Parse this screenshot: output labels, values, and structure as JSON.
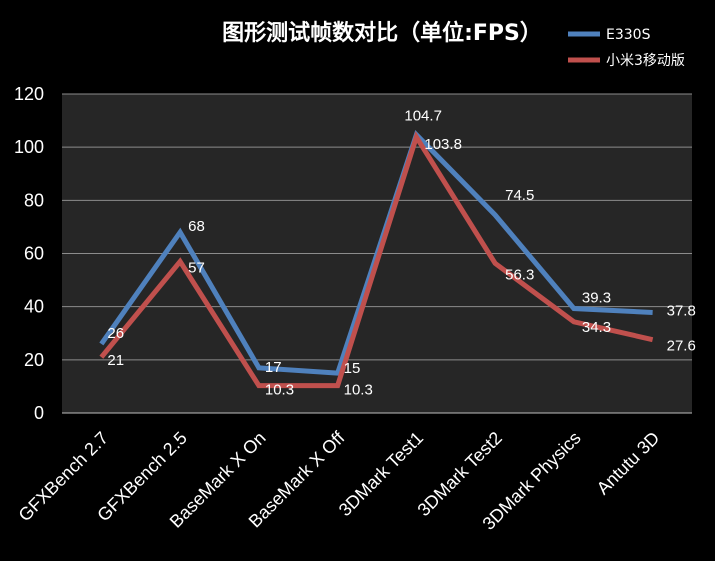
{
  "chart_data": {
    "type": "line",
    "title": "图形测试帧数对比（单位:FPS）",
    "categories": [
      "GFXBench 2.7",
      "GFXBench 2.5",
      "BaseMark X On",
      "BaseMark X Off",
      "3DMark Test1",
      "3DMark Test2",
      "3DMark Physics",
      "Antutu 3D"
    ],
    "series": [
      {
        "name": "E330S",
        "color": "#4F81BD",
        "values": [
          26,
          68,
          17,
          15,
          104.7,
          74.5,
          39.3,
          37.8
        ]
      },
      {
        "name": "小米3移动版",
        "color": "#C0504D",
        "values": [
          21,
          57,
          10.3,
          10.3,
          103.8,
          56.3,
          34.3,
          27.6
        ]
      }
    ],
    "ylim": [
      0,
      120
    ],
    "yticks": [
      0,
      20,
      40,
      60,
      80,
      100,
      120
    ],
    "grid": true,
    "legend": "top-right",
    "colors": {
      "background": "#000000",
      "plot_area": "#262626",
      "gridline": "#8c8c8c",
      "text": "#ffffff"
    }
  }
}
